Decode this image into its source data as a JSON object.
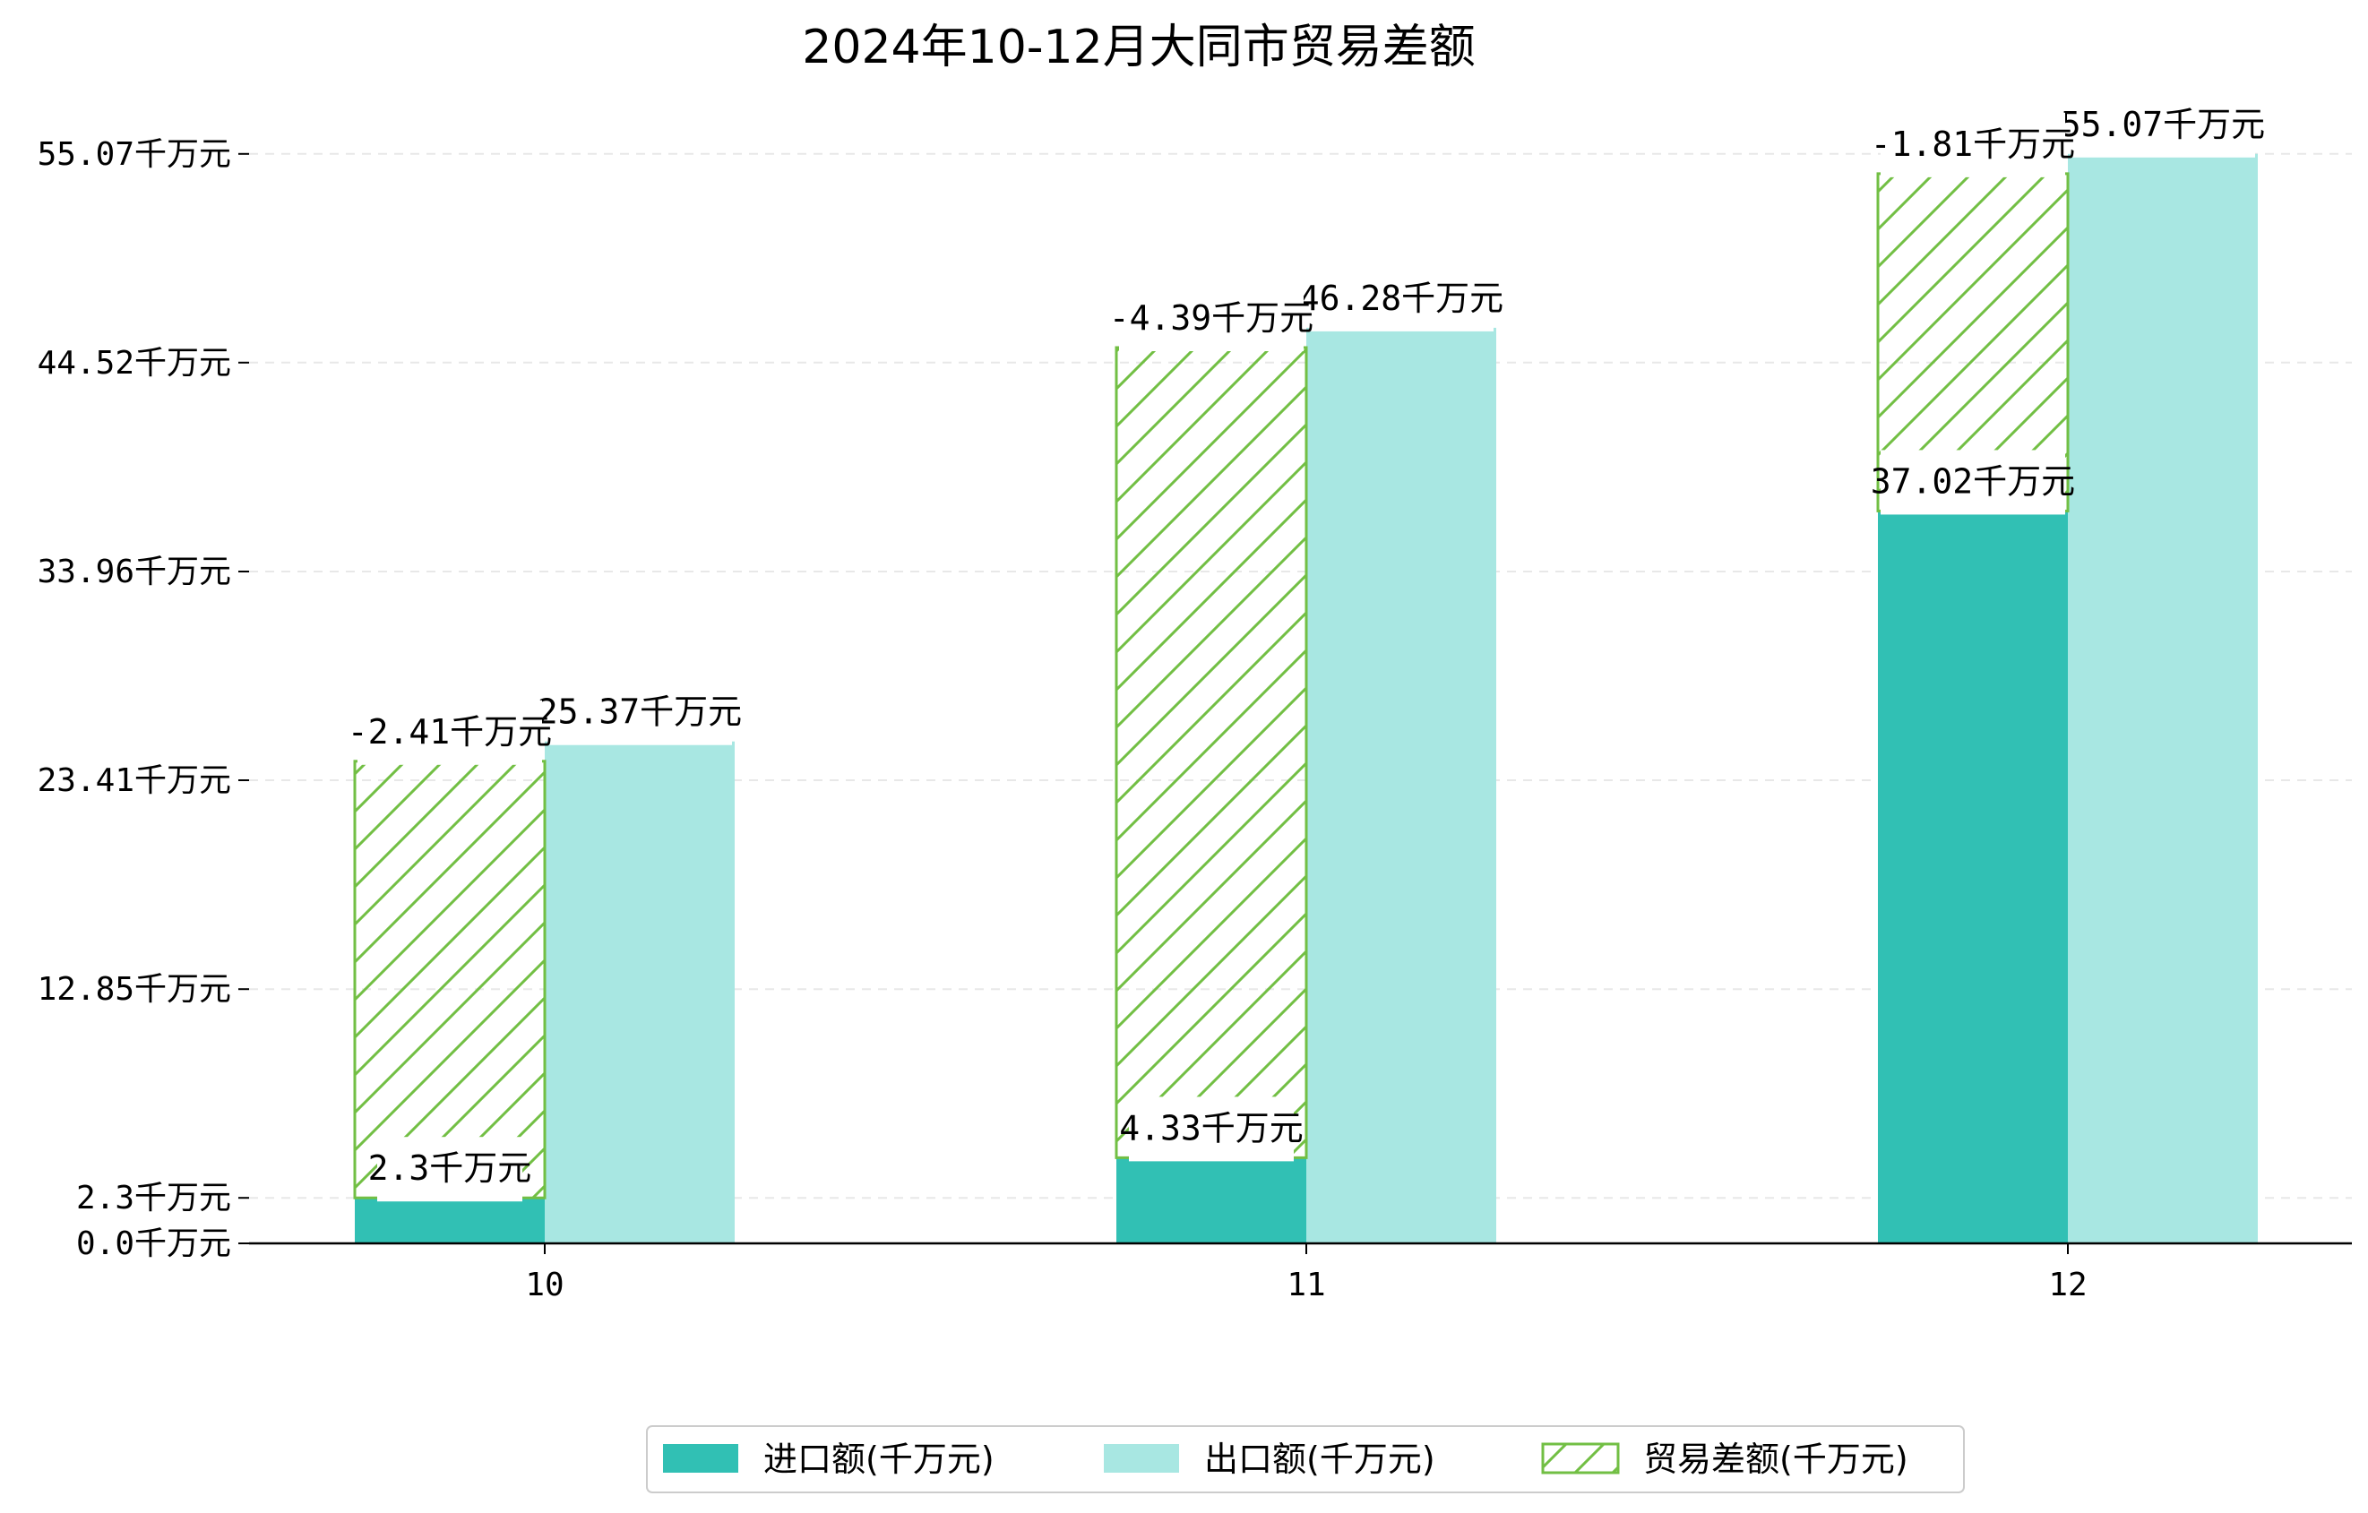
{
  "chart_data": {
    "type": "bar",
    "title": "2024年10-12月大同市贸易差额",
    "xlabel": "",
    "ylabel": "",
    "categories": [
      "10",
      "11",
      "12"
    ],
    "ylim": [
      0,
      59.0
    ],
    "yticks": [
      {
        "value": 0.0,
        "label": "0.0千万元"
      },
      {
        "value": 2.3,
        "label": "2.3千万元"
      },
      {
        "value": 12.85,
        "label": "12.85千万元"
      },
      {
        "value": 23.41,
        "label": "23.41千万元"
      },
      {
        "value": 33.96,
        "label": "33.96千万元"
      },
      {
        "value": 44.52,
        "label": "44.52千万元"
      },
      {
        "value": 55.07,
        "label": "55.07千万元"
      }
    ],
    "grid": "horizontal dashed",
    "legend_position": "bottom",
    "series": [
      {
        "name": "进口额(千万元)",
        "values": [
          2.3,
          4.33,
          37.02
        ],
        "labels": [
          "2.3千万元",
          "4.33千万元",
          "37.02千万元"
        ],
        "color": "#31c0b4",
        "style": "solid"
      },
      {
        "name": "出口额(千万元)",
        "values": [
          25.37,
          46.28,
          55.07
        ],
        "labels": [
          "25.37千万元",
          "46.28千万元",
          "55.07千万元"
        ],
        "color": "#a8e7e2",
        "style": "solid"
      },
      {
        "name": "贸易差额(千万元)",
        "values": [
          -2.41,
          -4.39,
          -1.81
        ],
        "labels": [
          "-2.41千万元",
          "-4.39千万元",
          "-1.81千万元"
        ],
        "color": "#72bf44",
        "style": "hatch"
      }
    ]
  }
}
